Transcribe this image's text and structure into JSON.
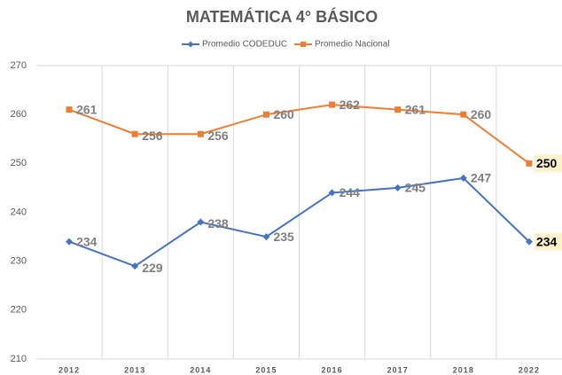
{
  "chart_data": {
    "type": "line",
    "title": "MATEMÁTICA 4° BÁSICO",
    "categories": [
      "2012",
      "2013",
      "2014",
      "2015",
      "2016",
      "2017",
      "2018",
      "2022"
    ],
    "series": [
      {
        "name": "Promedio CODEDUC",
        "color": "#4472c4",
        "values": [
          234,
          229,
          238,
          235,
          244,
          245,
          247,
          234
        ]
      },
      {
        "name": "Promedio Nacional",
        "color": "#ed7d31",
        "values": [
          261,
          256,
          256,
          260,
          262,
          261,
          260,
          250
        ]
      }
    ],
    "ylim": [
      210,
      270
    ],
    "yticks": [
      210,
      220,
      230,
      240,
      250,
      260,
      270
    ],
    "legend": "top"
  }
}
